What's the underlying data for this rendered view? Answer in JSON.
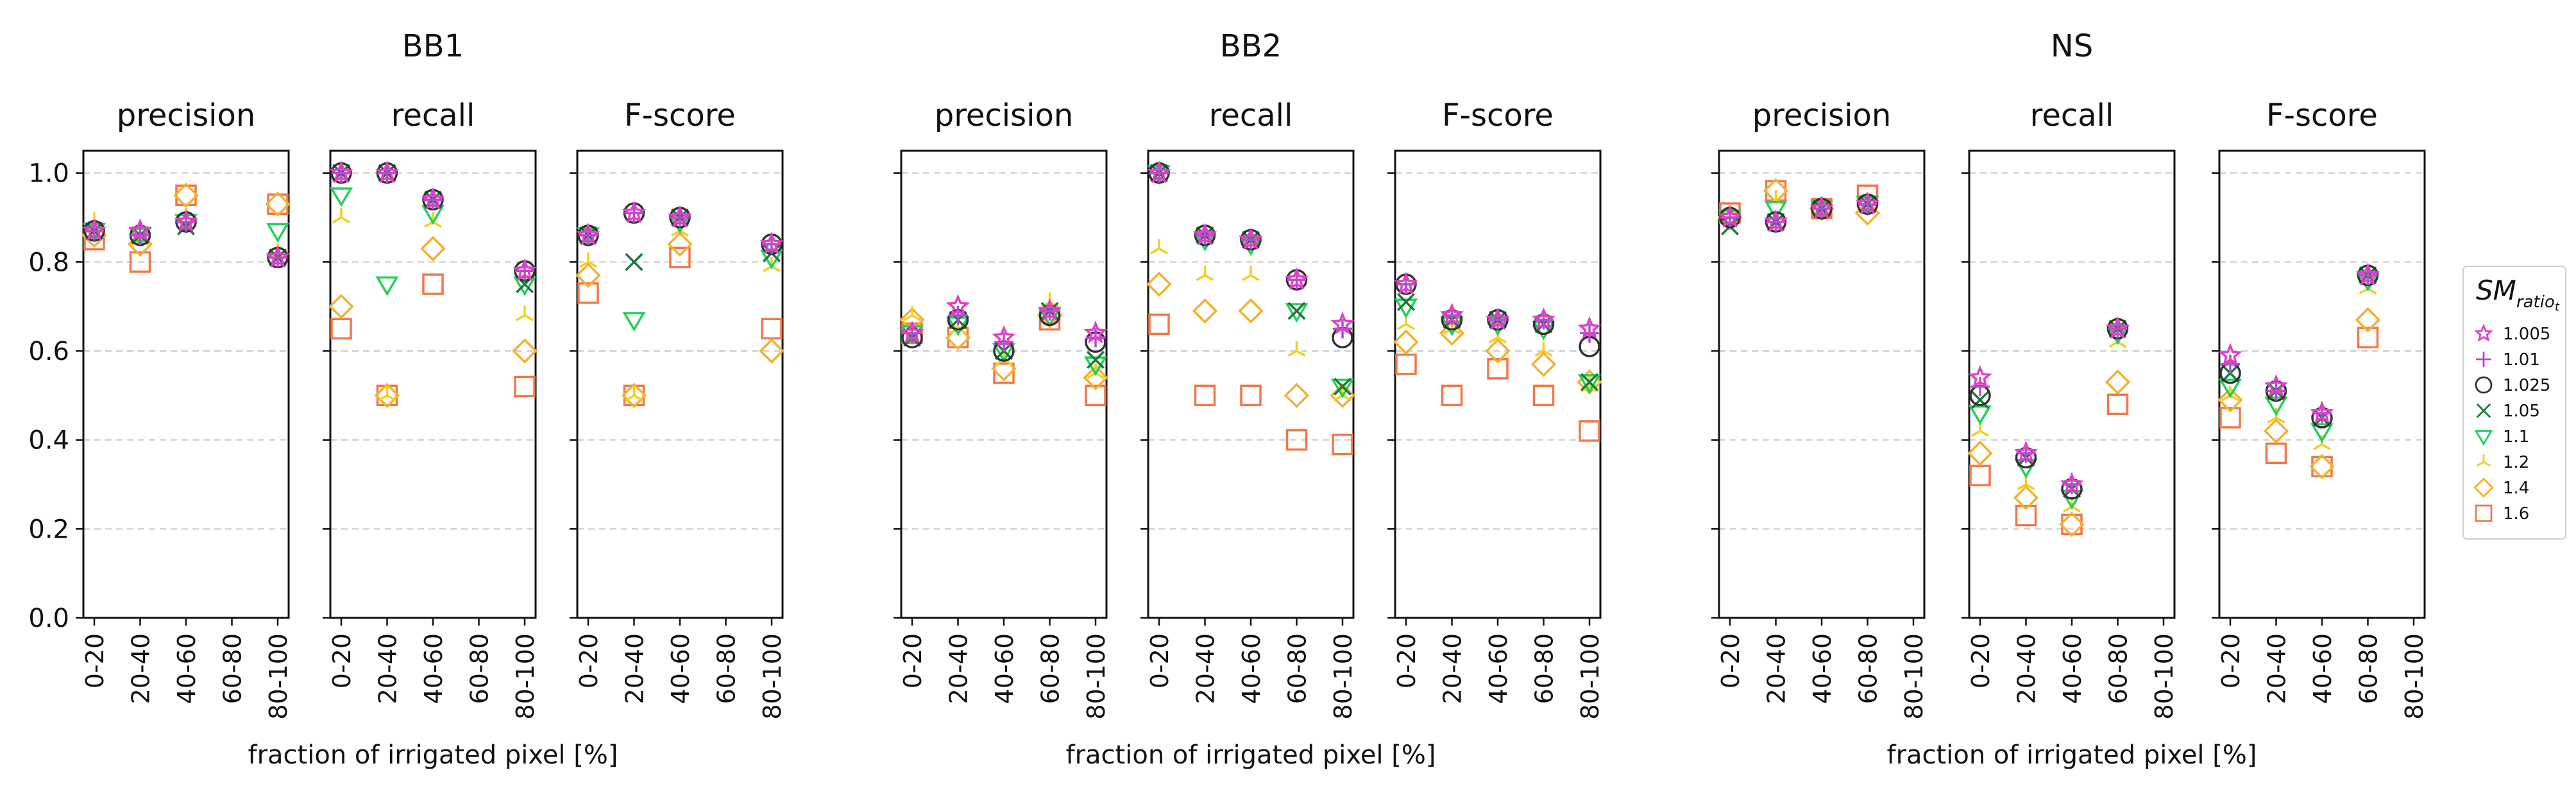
{
  "x_categories": [
    "0-20",
    "20-40",
    "40-60",
    "60-80",
    "80-100"
  ],
  "y_ticks": [
    "0.0",
    "0.2",
    "0.4",
    "0.6",
    "0.8",
    "1.0"
  ],
  "xlabel": "fraction of irrigated pixel [%]",
  "legend": {
    "title_main": "SM",
    "title_sub": "ratio",
    "title_subsub": "t",
    "entries": [
      {
        "label": "1.005",
        "color": "#e040c8",
        "marker": "star"
      },
      {
        "label": "1.01",
        "color": "#b44ad6",
        "marker": "plus"
      },
      {
        "label": "1.025",
        "color": "#333333",
        "marker": "circle"
      },
      {
        "label": "1.05",
        "color": "#1a7a3a",
        "marker": "x"
      },
      {
        "label": "1.1",
        "color": "#22d05a",
        "marker": "tri_down"
      },
      {
        "label": "1.2",
        "color": "#f2cf1e",
        "marker": "tri_up"
      },
      {
        "label": "1.4",
        "color": "#f5b030",
        "marker": "diamond"
      },
      {
        "label": "1.6",
        "color": "#f07848",
        "marker": "square"
      }
    ]
  },
  "chart_data": [
    {
      "type": "scatter",
      "group": "BB1",
      "ylim": [
        0,
        1.05
      ],
      "grid": true,
      "panels": [
        {
          "title": "precision",
          "series": [
            {
              "name": "1.005",
              "values": [
                0.87,
                0.87,
                0.89,
                null,
                0.81
              ]
            },
            {
              "name": "1.01",
              "values": [
                0.87,
                0.86,
                0.89,
                null,
                0.81
              ]
            },
            {
              "name": "1.025",
              "values": [
                0.87,
                0.86,
                0.89,
                null,
                0.81
              ]
            },
            {
              "name": "1.05",
              "values": [
                0.87,
                0.86,
                0.88,
                null,
                0.81
              ]
            },
            {
              "name": "1.1",
              "values": [
                0.87,
                0.86,
                0.89,
                null,
                0.87
              ]
            },
            {
              "name": "1.2",
              "values": [
                0.89,
                0.85,
                0.9,
                null,
                0.82
              ]
            },
            {
              "name": "1.4",
              "values": [
                0.86,
                0.84,
                0.95,
                null,
                0.93
              ]
            },
            {
              "name": "1.6",
              "values": [
                0.85,
                0.8,
                0.95,
                null,
                0.93
              ]
            }
          ]
        },
        {
          "title": "recall",
          "series": [
            {
              "name": "1.005",
              "values": [
                1.0,
                1.0,
                0.94,
                null,
                0.78
              ]
            },
            {
              "name": "1.01",
              "values": [
                1.0,
                1.0,
                0.94,
                null,
                0.78
              ]
            },
            {
              "name": "1.025",
              "values": [
                1.0,
                1.0,
                0.94,
                null,
                0.78
              ]
            },
            {
              "name": "1.05",
              "values": [
                1.0,
                1.0,
                0.94,
                null,
                0.75
              ]
            },
            {
              "name": "1.1",
              "values": [
                0.95,
                0.75,
                0.91,
                null,
                0.75
              ]
            },
            {
              "name": "1.2",
              "values": [
                0.9,
                0.5,
                0.89,
                null,
                0.68
              ]
            },
            {
              "name": "1.4",
              "values": [
                0.7,
                0.5,
                0.83,
                null,
                0.6
              ]
            },
            {
              "name": "1.6",
              "values": [
                0.65,
                0.5,
                0.75,
                null,
                0.52
              ]
            }
          ]
        },
        {
          "title": "F-score",
          "series": [
            {
              "name": "1.005",
              "values": [
                0.86,
                0.91,
                0.9,
                null,
                0.84
              ]
            },
            {
              "name": "1.01",
              "values": [
                0.86,
                0.91,
                0.9,
                null,
                0.84
              ]
            },
            {
              "name": "1.025",
              "values": [
                0.86,
                0.91,
                0.9,
                null,
                0.84
              ]
            },
            {
              "name": "1.05",
              "values": [
                0.86,
                0.8,
                0.9,
                null,
                0.82
              ]
            },
            {
              "name": "1.1",
              "values": [
                0.86,
                0.67,
                0.89,
                null,
                0.81
              ]
            },
            {
              "name": "1.2",
              "values": [
                0.8,
                0.5,
                0.87,
                null,
                0.79
              ]
            },
            {
              "name": "1.4",
              "values": [
                0.77,
                0.5,
                0.84,
                null,
                0.6
              ]
            },
            {
              "name": "1.6",
              "values": [
                0.73,
                0.5,
                0.81,
                null,
                0.65
              ]
            }
          ]
        }
      ]
    },
    {
      "type": "scatter",
      "group": "BB2",
      "ylim": [
        0,
        1.05
      ],
      "grid": true,
      "panels": [
        {
          "title": "precision",
          "series": [
            {
              "name": "1.005",
              "values": [
                0.64,
                0.7,
                0.63,
                0.69,
                0.64
              ]
            },
            {
              "name": "1.01",
              "values": [
                0.64,
                0.68,
                0.62,
                0.69,
                0.63
              ]
            },
            {
              "name": "1.025",
              "values": [
                0.63,
                0.67,
                0.6,
                0.68,
                0.62
              ]
            },
            {
              "name": "1.05",
              "values": [
                0.63,
                0.67,
                0.6,
                0.69,
                0.58
              ]
            },
            {
              "name": "1.1",
              "values": [
                0.64,
                0.66,
                0.6,
                0.68,
                0.57
              ]
            },
            {
              "name": "1.2",
              "values": [
                0.68,
                0.65,
                0.58,
                0.71,
                0.55
              ]
            },
            {
              "name": "1.4",
              "values": [
                0.67,
                0.63,
                0.56,
                0.68,
                0.54
              ]
            },
            {
              "name": "1.6",
              "values": [
                0.64,
                0.63,
                0.55,
                0.67,
                0.5
              ]
            }
          ]
        },
        {
          "title": "recall",
          "series": [
            {
              "name": "1.005",
              "values": [
                1.0,
                0.86,
                0.85,
                0.76,
                0.66
              ]
            },
            {
              "name": "1.01",
              "values": [
                1.0,
                0.86,
                0.85,
                0.76,
                0.65
              ]
            },
            {
              "name": "1.025",
              "values": [
                1.0,
                0.86,
                0.85,
                0.76,
                0.63
              ]
            },
            {
              "name": "1.05",
              "values": [
                1.0,
                0.86,
                0.85,
                0.69,
                0.52
              ]
            },
            {
              "name": "1.1",
              "values": [
                1.0,
                0.85,
                0.84,
                0.69,
                0.52
              ]
            },
            {
              "name": "1.2",
              "values": [
                0.83,
                0.77,
                0.77,
                0.6,
                0.5
              ]
            },
            {
              "name": "1.4",
              "values": [
                0.75,
                0.69,
                0.69,
                0.5,
                0.5
              ]
            },
            {
              "name": "1.6",
              "values": [
                0.66,
                0.5,
                0.5,
                0.4,
                0.39
              ]
            }
          ]
        },
        {
          "title": "F-score",
          "series": [
            {
              "name": "1.005",
              "values": [
                0.75,
                0.68,
                0.67,
                0.67,
                0.65
              ]
            },
            {
              "name": "1.01",
              "values": [
                0.75,
                0.68,
                0.67,
                0.67,
                0.64
              ]
            },
            {
              "name": "1.025",
              "values": [
                0.75,
                0.67,
                0.67,
                0.66,
                0.61
              ]
            },
            {
              "name": "1.05",
              "values": [
                0.71,
                0.67,
                0.67,
                0.66,
                0.53
              ]
            },
            {
              "name": "1.1",
              "values": [
                0.7,
                0.66,
                0.66,
                0.65,
                0.53
              ]
            },
            {
              "name": "1.2",
              "values": [
                0.66,
                0.65,
                0.63,
                0.6,
                0.52
              ]
            },
            {
              "name": "1.4",
              "values": [
                0.62,
                0.64,
                0.6,
                0.57,
                0.53
              ]
            },
            {
              "name": "1.6",
              "values": [
                0.57,
                0.5,
                0.56,
                0.5,
                0.42
              ]
            }
          ]
        }
      ]
    },
    {
      "type": "scatter",
      "group": "NS",
      "ylim": [
        0,
        1.05
      ],
      "grid": true,
      "panels": [
        {
          "title": "precision",
          "series": [
            {
              "name": "1.005",
              "values": [
                0.9,
                0.89,
                0.92,
                0.93,
                null
              ]
            },
            {
              "name": "1.01",
              "values": [
                0.9,
                0.89,
                0.92,
                0.93,
                null
              ]
            },
            {
              "name": "1.025",
              "values": [
                0.9,
                0.89,
                0.92,
                0.93,
                null
              ]
            },
            {
              "name": "1.05",
              "values": [
                0.88,
                0.89,
                0.92,
                0.93,
                null
              ]
            },
            {
              "name": "1.1",
              "values": [
                0.9,
                0.92,
                0.92,
                0.93,
                null
              ]
            },
            {
              "name": "1.2",
              "values": [
                0.9,
                0.94,
                0.92,
                0.93,
                null
              ]
            },
            {
              "name": "1.4",
              "values": [
                0.9,
                0.96,
                0.92,
                0.91,
                null
              ]
            },
            {
              "name": "1.6",
              "values": [
                0.91,
                0.96,
                0.92,
                0.95,
                null
              ]
            }
          ]
        },
        {
          "title": "recall",
          "series": [
            {
              "name": "1.005",
              "values": [
                0.54,
                0.37,
                0.3,
                0.65,
                null
              ]
            },
            {
              "name": "1.01",
              "values": [
                0.52,
                0.37,
                0.3,
                0.65,
                null
              ]
            },
            {
              "name": "1.025",
              "values": [
                0.5,
                0.36,
                0.29,
                0.65,
                null
              ]
            },
            {
              "name": "1.05",
              "values": [
                0.49,
                0.36,
                0.29,
                0.65,
                null
              ]
            },
            {
              "name": "1.1",
              "values": [
                0.46,
                0.34,
                0.27,
                0.64,
                null
              ]
            },
            {
              "name": "1.2",
              "values": [
                0.42,
                0.3,
                0.25,
                0.62,
                null
              ]
            },
            {
              "name": "1.4",
              "values": [
                0.37,
                0.27,
                0.21,
                0.53,
                null
              ]
            },
            {
              "name": "1.6",
              "values": [
                0.32,
                0.23,
                0.21,
                0.48,
                null
              ]
            }
          ]
        },
        {
          "title": "F-score",
          "series": [
            {
              "name": "1.005",
              "values": [
                0.59,
                0.52,
                0.46,
                0.77,
                null
              ]
            },
            {
              "name": "1.01",
              "values": [
                0.57,
                0.51,
                0.46,
                0.77,
                null
              ]
            },
            {
              "name": "1.025",
              "values": [
                0.55,
                0.51,
                0.45,
                0.77,
                null
              ]
            },
            {
              "name": "1.05",
              "values": [
                0.55,
                0.51,
                0.45,
                0.77,
                null
              ]
            },
            {
              "name": "1.1",
              "values": [
                0.52,
                0.48,
                0.42,
                0.76,
                null
              ]
            },
            {
              "name": "1.2",
              "values": [
                0.5,
                0.45,
                0.39,
                0.74,
                null
              ]
            },
            {
              "name": "1.4",
              "values": [
                0.49,
                0.42,
                0.34,
                0.67,
                null
              ]
            },
            {
              "name": "1.6",
              "values": [
                0.45,
                0.37,
                0.34,
                0.63,
                null
              ]
            }
          ]
        }
      ]
    }
  ]
}
